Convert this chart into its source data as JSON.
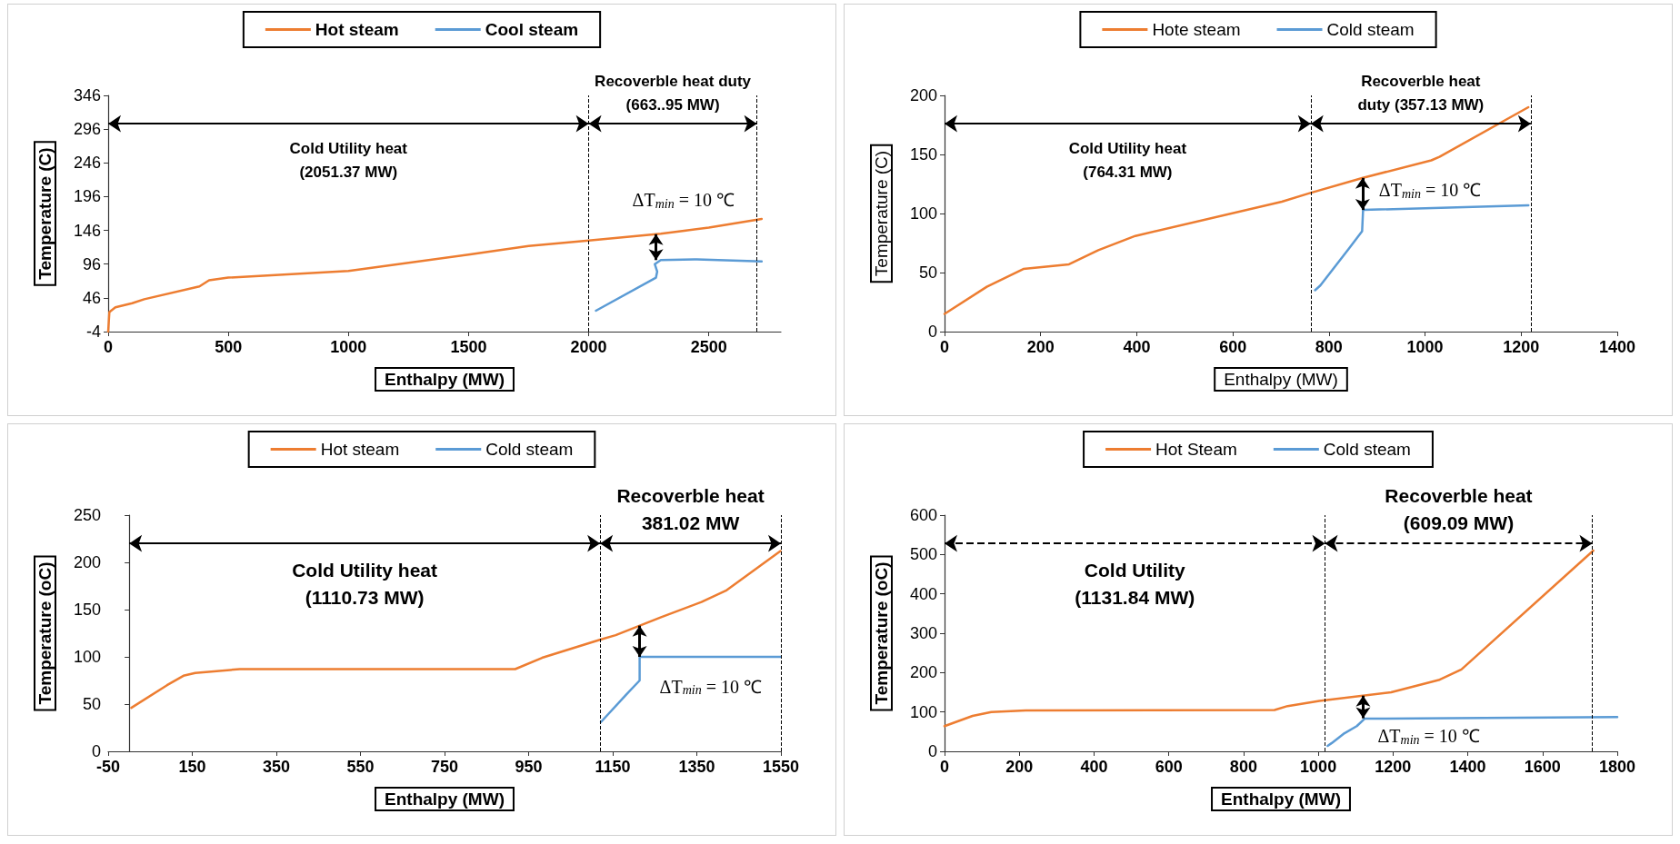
{
  "chart_data": [
    {
      "type": "line",
      "xlabel": "Enthalpy (MW)",
      "ylabel": "Temperature (C)",
      "xlim": [
        0,
        2800
      ],
      "xticks": [
        0,
        500,
        1000,
        1500,
        2000,
        2500
      ],
      "ylim": [
        -4,
        346
      ],
      "yticks": [
        -4,
        46,
        96,
        146,
        196,
        246,
        296,
        346
      ],
      "legend": "top",
      "series": [
        {
          "name": "Hot steam",
          "color": "#ed7d31",
          "x": [
            0,
            5,
            30,
            100,
            150,
            380,
            420,
            500,
            1000,
            1500,
            1750,
            2000,
            2300,
            2500,
            2720
          ],
          "values": [
            -4,
            25,
            32,
            38,
            44,
            63,
            72,
            76,
            86,
            110,
            123,
            131,
            141,
            150,
            163
          ]
        },
        {
          "name": "Cool steam",
          "color": "#5b9bd5",
          "x": [
            2030,
            2280,
            2285,
            2275,
            2300,
            2450,
            2720
          ],
          "values": [
            27,
            76,
            85,
            96,
            102,
            103,
            100
          ]
        }
      ],
      "ref_lines": [
        {
          "axis": "x",
          "value": 2000,
          "line_style": "dashed"
        },
        {
          "axis": "x",
          "value": 2700,
          "line_style": "dashed"
        }
      ],
      "annotations": [
        "Cold Utility heat\n(2051.37 MW)",
        "Recoverble heat duty\n(663..95 MW)",
        {
          "text": "ΔT$_{min}$ = 10 ℃",
          "x": 2280,
          "y": 102
        }
      ]
    },
    {
      "type": "line",
      "xlabel": "Enthalpy (MW)",
      "ylabel": "Temperature (C)",
      "xlim": [
        0,
        1400
      ],
      "xticks": [
        0,
        200,
        400,
        600,
        800,
        1000,
        1200,
        1400
      ],
      "ylim": [
        0,
        200
      ],
      "yticks": [
        0,
        50,
        100,
        150,
        200
      ],
      "legend": "top",
      "series": [
        {
          "name": "Hote steam",
          "color": "#ed7d31",
          "x": [
            0,
            88,
            164,
            259,
            320,
            397,
            702,
            758,
            869,
            1013,
            1030,
            1215
          ],
          "values": [
            15,
            38,
            53,
            57,
            69,
            81,
            110,
            117,
            130,
            145,
            148,
            190
          ]
        },
        {
          "name": "Cold steam",
          "color": "#5b9bd5",
          "x": [
            771,
            782,
            841,
            869,
            871,
            1215
          ],
          "values": [
            35,
            39,
            70,
            85,
            103,
            107
          ]
        }
      ],
      "ref_lines": [
        {
          "axis": "x",
          "value": 762,
          "line_style": "dashed"
        },
        {
          "axis": "x",
          "value": 1220,
          "line_style": "dashed"
        }
      ],
      "annotations": [
        "Cold Utility heat\n(764.31 MW)",
        "Recoverble heat\nduty (357.13 MW)",
        {
          "text": "ΔT$_{min}$ = 10 ℃",
          "x": 870,
          "y": 103
        }
      ]
    },
    {
      "type": "line",
      "xlabel": "Enthalpy (MW)",
      "ylabel": "Temperature (oC)",
      "xlim": [
        -50,
        1550
      ],
      "xticks": [
        -50,
        150,
        350,
        550,
        750,
        950,
        1150,
        1350,
        1550
      ],
      "ylim": [
        0,
        250
      ],
      "yticks": [
        0,
        50,
        100,
        150,
        200,
        250
      ],
      "legend": "top",
      "series": [
        {
          "name": "Hot steam",
          "color": "#ed7d31",
          "x": [
            5,
            90,
            129,
            157,
            263,
            918,
            982,
            1119,
            1157,
            1265,
            1361,
            1419,
            1549
          ],
          "values": [
            46,
            70,
            80,
            83,
            87,
            87,
            99,
            118,
            123,
            142,
            158,
            170,
            212
          ]
        },
        {
          "name": "Cold steam",
          "color": "#5b9bd5",
          "x": [
            1122,
            1182,
            1214,
            1214,
            1549
          ],
          "values": [
            31,
            60,
            75,
            100,
            100
          ]
        }
      ],
      "ref_lines": [
        {
          "axis": "x",
          "value": 1120,
          "line_style": "dashed"
        },
        {
          "axis": "x",
          "value": 1550,
          "line_style": "dashed"
        }
      ],
      "annotations": [
        "Cold Utility heat\n(1110.73 MW)",
        "Recoverble heat\n381.02 MW",
        {
          "text": "ΔT$_{min}$ = 10 ℃",
          "x": 1214,
          "y": 100
        }
      ]
    },
    {
      "type": "line",
      "xlabel": "Enthalpy (MW)",
      "ylabel": "Temperature (oC)",
      "xlim": [
        0,
        1800
      ],
      "xticks": [
        0,
        200,
        400,
        600,
        800,
        1000,
        1200,
        1400,
        1600,
        1800
      ],
      "ylim": [
        0,
        600
      ],
      "yticks": [
        0,
        100,
        200,
        300,
        400,
        500,
        600
      ],
      "legend": "top",
      "series": [
        {
          "name": "Hot Steam",
          "color": "#ed7d31",
          "x": [
            0,
            75,
            125,
            217,
            883,
            918,
            1003,
            1195,
            1322,
            1383,
            1736
          ],
          "values": [
            64,
            90,
            100,
            104,
            105,
            115,
            128,
            150,
            181,
            208,
            510
          ]
        },
        {
          "name": "Cold steam",
          "color": "#5b9bd5",
          "x": [
            1025,
            1036,
            1067,
            1103,
            1124,
            1800
          ],
          "values": [
            14,
            21,
            44,
            64,
            83,
            87
          ]
        }
      ],
      "ref_lines": [
        {
          "axis": "x",
          "value": 1018,
          "line_style": "dashed"
        },
        {
          "axis": "x",
          "value": 1733,
          "line_style": "dashed"
        }
      ],
      "annotations": [
        "Cold Utility\n(1131.84 MW)",
        "Recoverble heat\n(609.09 MW)",
        {
          "text": "ΔT$_{min}$ = 10 ℃",
          "x": 1120,
          "y": 84
        }
      ]
    }
  ]
}
